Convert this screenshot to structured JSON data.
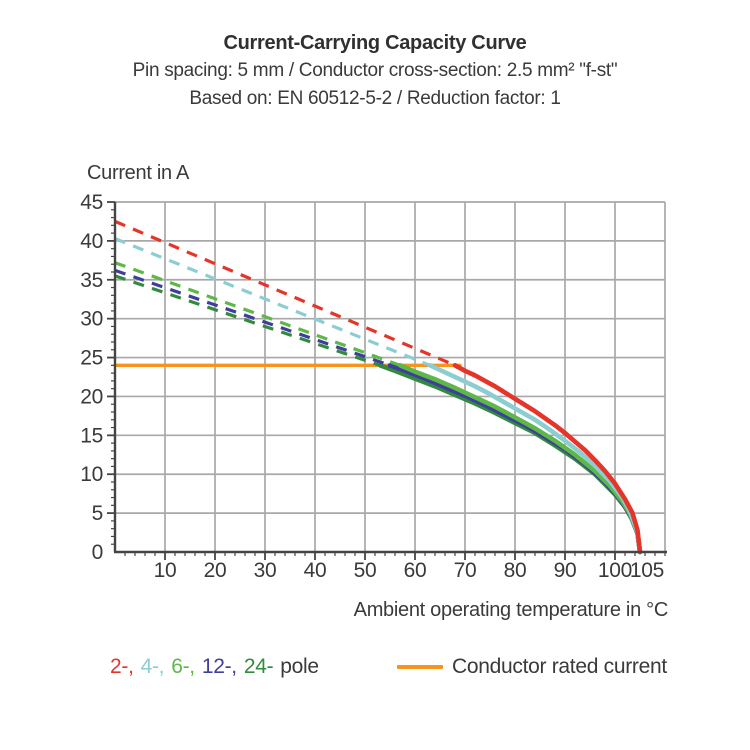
{
  "header": {
    "title": "Current-Carrying Capacity Curve",
    "subtitle1": "Pin spacing: 5 mm / Conductor cross-section: 2.5 mm² \"f-st\"",
    "subtitle2": "Based on: EN 60512-5-2 / Reduction factor: 1"
  },
  "chart_data": {
    "type": "line",
    "title": "Current-Carrying Capacity Curve",
    "xlabel": "Ambient operating temperature in °C",
    "ylabel": "Current in A",
    "xlim": [
      0,
      110
    ],
    "ylim": [
      0,
      45
    ],
    "grid": true,
    "grid_color": "#a8a8a8",
    "axis_color": "#444444",
    "x_major_ticks": [
      10,
      20,
      30,
      40,
      50,
      60,
      70,
      80,
      90,
      100,
      105
    ],
    "x_minor_step": 2,
    "y_major_ticks": [
      0,
      5,
      10,
      15,
      20,
      25,
      30,
      35,
      40,
      45
    ],
    "y_minor_step": 1,
    "x_gridlines": [
      10,
      20,
      30,
      40,
      50,
      60,
      70,
      80,
      90,
      100
    ],
    "y_gridlines": [
      5,
      10,
      15,
      20,
      25,
      30,
      35,
      40,
      45
    ],
    "rated_current": {
      "value": 24,
      "x_start": 0,
      "x_end": 69,
      "color": "#f7941e",
      "legend_label": "Conductor rated current"
    },
    "series": [
      {
        "name": "2-pole",
        "label": "2-,",
        "color": "#e5352b",
        "dashed": [
          [
            0,
            42.5
          ],
          [
            68,
            24
          ]
        ],
        "solid": [
          [
            68,
            24
          ],
          [
            70,
            23.3
          ],
          [
            72,
            22.7
          ],
          [
            74,
            22.0
          ],
          [
            76,
            21.3
          ],
          [
            78,
            20.5
          ],
          [
            80,
            19.7
          ],
          [
            82,
            18.9
          ],
          [
            84,
            18.1
          ],
          [
            86,
            17.2
          ],
          [
            88,
            16.3
          ],
          [
            90,
            15.3
          ],
          [
            92,
            14.2
          ],
          [
            94,
            13.1
          ],
          [
            96,
            11.8
          ],
          [
            98,
            10.4
          ],
          [
            100,
            8.8
          ],
          [
            102,
            6.8
          ],
          [
            103.5,
            5.0
          ],
          [
            104.5,
            2.8
          ],
          [
            105,
            0
          ]
        ]
      },
      {
        "name": "4-pole",
        "label": "4-,",
        "color": "#8ccdd2",
        "dashed": [
          [
            0,
            40.3
          ],
          [
            63,
            24
          ]
        ],
        "solid": [
          [
            63,
            24
          ],
          [
            66,
            23.1
          ],
          [
            69,
            22.2
          ],
          [
            72,
            21.3
          ],
          [
            75,
            20.3
          ],
          [
            78,
            19.2
          ],
          [
            81,
            18.1
          ],
          [
            84,
            17.0
          ],
          [
            87,
            15.7
          ],
          [
            90,
            14.3
          ],
          [
            93,
            12.8
          ],
          [
            96,
            11.1
          ],
          [
            99,
            9.1
          ],
          [
            101.5,
            7.0
          ],
          [
            103,
            5.2
          ],
          [
            104.5,
            2.6
          ],
          [
            105,
            0
          ]
        ]
      },
      {
        "name": "6-pole",
        "label": "6-,",
        "color": "#5eb848",
        "dashed": [
          [
            0,
            37.2
          ],
          [
            57,
            24
          ]
        ],
        "solid": [
          [
            57,
            24
          ],
          [
            60,
            23.2
          ],
          [
            64,
            22.2
          ],
          [
            68,
            21.1
          ],
          [
            72,
            19.9
          ],
          [
            76,
            18.7
          ],
          [
            80,
            17.3
          ],
          [
            84,
            15.9
          ],
          [
            88,
            14.3
          ],
          [
            92,
            12.5
          ],
          [
            96,
            10.4
          ],
          [
            99,
            8.5
          ],
          [
            101.5,
            6.5
          ],
          [
            103,
            4.9
          ],
          [
            104.5,
            2.5
          ],
          [
            105,
            0
          ]
        ]
      },
      {
        "name": "12-pole",
        "label": "12-,",
        "color": "#3e3e9c",
        "dashed": [
          [
            0,
            36.2
          ],
          [
            55,
            24
          ]
        ],
        "solid": [
          [
            55,
            24
          ],
          [
            58,
            23.3
          ],
          [
            62,
            22.3
          ],
          [
            66,
            21.2
          ],
          [
            70,
            20.1
          ],
          [
            74,
            18.9
          ],
          [
            78,
            17.6
          ],
          [
            82,
            16.3
          ],
          [
            86,
            14.8
          ],
          [
            90,
            13.2
          ],
          [
            94,
            11.3
          ],
          [
            98,
            9.0
          ],
          [
            101,
            6.8
          ],
          [
            103,
            4.8
          ],
          [
            104.5,
            2.4
          ],
          [
            105,
            0
          ]
        ]
      },
      {
        "name": "24-pole",
        "label": "24-",
        "color": "#338a3e",
        "dashed": [
          [
            0,
            35.5
          ],
          [
            53,
            24
          ]
        ],
        "solid": [
          [
            53,
            24
          ],
          [
            56,
            23.3
          ],
          [
            60,
            22.3
          ],
          [
            64,
            21.3
          ],
          [
            68,
            20.2
          ],
          [
            72,
            19.1
          ],
          [
            76,
            17.9
          ],
          [
            80,
            16.6
          ],
          [
            84,
            15.3
          ],
          [
            88,
            13.7
          ],
          [
            92,
            12.0
          ],
          [
            96,
            10.0
          ],
          [
            100,
            7.4
          ],
          [
            102,
            5.8
          ],
          [
            103.5,
            4.1
          ],
          [
            104.5,
            2.4
          ],
          [
            105,
            0
          ]
        ]
      }
    ],
    "legend_suffix": "pole"
  }
}
